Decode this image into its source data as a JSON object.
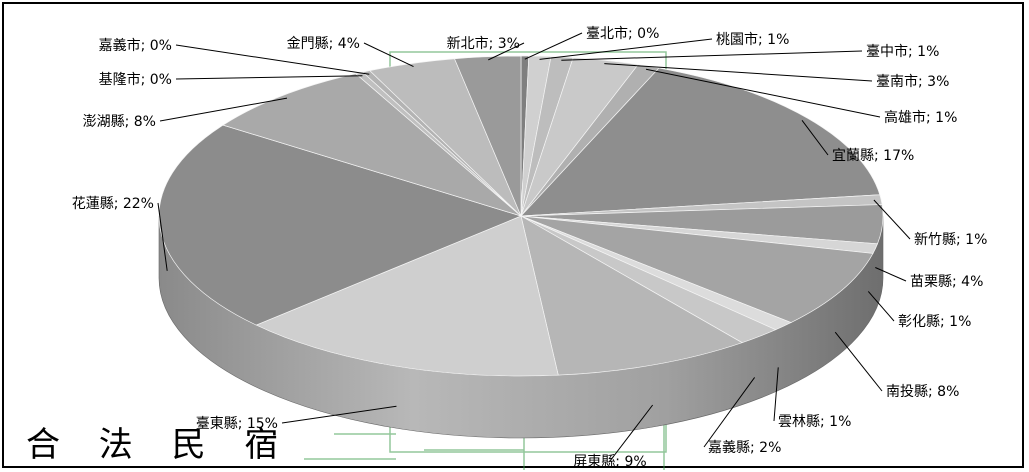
{
  "chart_data": {
    "type": "pie",
    "title": "合 法 民 宿",
    "style": "3d",
    "label_format": "{name}; {pct}%",
    "slices": [
      {
        "name": "臺北市",
        "pct": 0
      },
      {
        "name": "桃園市",
        "pct": 1
      },
      {
        "name": "臺中市",
        "pct": 1
      },
      {
        "name": "臺南市",
        "pct": 3
      },
      {
        "name": "高雄市",
        "pct": 1
      },
      {
        "name": "宜蘭縣",
        "pct": 17
      },
      {
        "name": "新竹縣",
        "pct": 1
      },
      {
        "name": "苗栗縣",
        "pct": 4
      },
      {
        "name": "彰化縣",
        "pct": 1
      },
      {
        "name": "南投縣",
        "pct": 8
      },
      {
        "name": "雲林縣",
        "pct": 1
      },
      {
        "name": "嘉義縣",
        "pct": 2
      },
      {
        "name": "屏東縣",
        "pct": 9
      },
      {
        "name": "臺東縣",
        "pct": 15
      },
      {
        "name": "花蓮縣",
        "pct": 22
      },
      {
        "name": "澎湖縣",
        "pct": 8
      },
      {
        "name": "基隆市",
        "pct": 0
      },
      {
        "name": "嘉義市",
        "pct": 0
      },
      {
        "name": "金門縣",
        "pct": 4
      },
      {
        "name": "新北市",
        "pct": 3
      }
    ],
    "grid": false,
    "legend": "none"
  }
}
